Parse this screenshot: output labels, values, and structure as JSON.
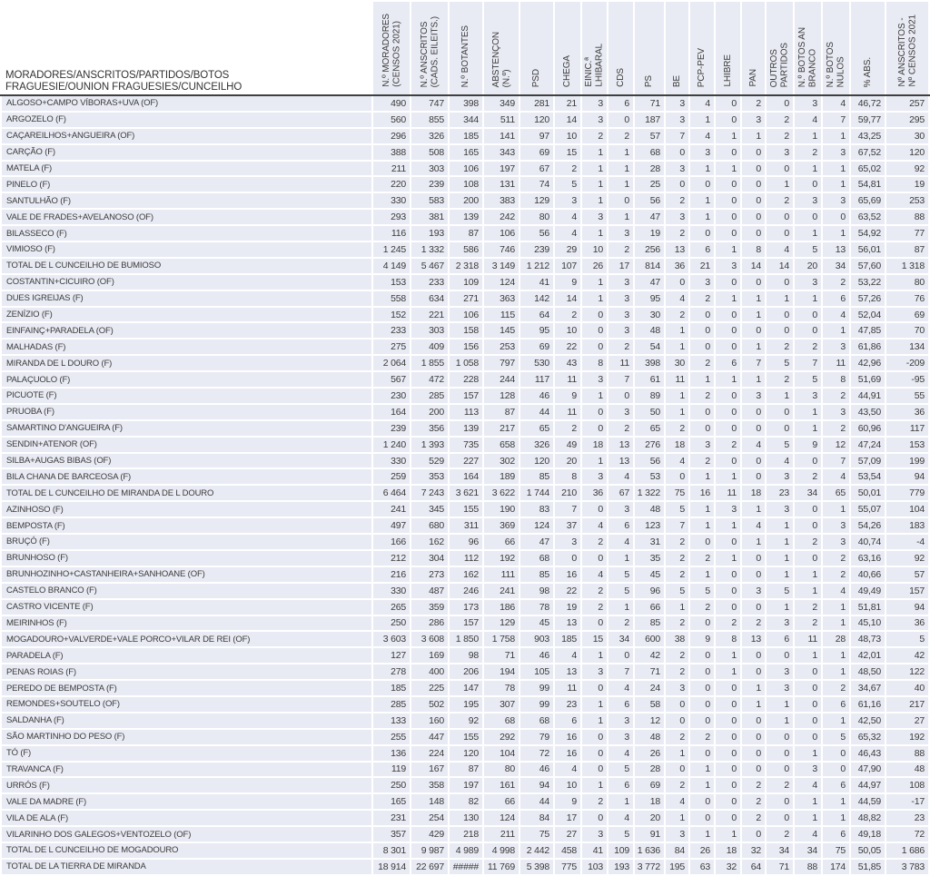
{
  "colors": {
    "row_fill": "#e9ebf4",
    "gridline": "#ffffff",
    "text": "#3a3a3a",
    "header_rule": "#404040",
    "page_bg": "#ffffff"
  },
  "table": {
    "row_header": "MORADORES/ANSCRITOS/PARTIDOS/BOTOS\nFRAGUESIE/OUNION FRAGUESIES/CUNCEILHO",
    "columns": [
      "N.º MORADORES\n(CENSOS 2021)",
      "N.º ANSCRITOS\n(CADS. EILEITS.)",
      "N.º BOTANTES",
      "ABSTENÇON\n(N.º)",
      "PSD",
      "CHEGA",
      "EINIC.ª\nLHIBARAL",
      "CDS",
      "PS",
      "BE",
      "PCP-PEV",
      "LHIBRE",
      "PAN",
      "OUTROS\nPARTIDOS",
      "N.º BOTOS AN\nBRANCO",
      "N.º BOTOS\nNULOS",
      "% ABS.",
      "Nº ANSCRITOS -\nNº CENSOS 2021"
    ],
    "rows": [
      {
        "label": "ALGOSO+CAMPO VÍBORAS+UVA (OF)",
        "values": [
          "490",
          "747",
          "398",
          "349",
          "281",
          "21",
          "3",
          "6",
          "71",
          "3",
          "4",
          "0",
          "2",
          "0",
          "3",
          "4",
          "46,72",
          "257"
        ]
      },
      {
        "label": "ARGOZELO (F)",
        "values": [
          "560",
          "855",
          "344",
          "511",
          "120",
          "14",
          "3",
          "0",
          "187",
          "3",
          "1",
          "0",
          "3",
          "2",
          "4",
          "7",
          "59,77",
          "295"
        ]
      },
      {
        "label": "CAÇAREILHOS+ANGUEIRA (OF)",
        "values": [
          "296",
          "326",
          "185",
          "141",
          "97",
          "10",
          "2",
          "2",
          "57",
          "7",
          "4",
          "1",
          "1",
          "2",
          "1",
          "1",
          "43,25",
          "30"
        ]
      },
      {
        "label": "CARÇÃO (F)",
        "values": [
          "388",
          "508",
          "165",
          "343",
          "69",
          "15",
          "1",
          "1",
          "68",
          "0",
          "3",
          "0",
          "0",
          "3",
          "2",
          "3",
          "67,52",
          "120"
        ]
      },
      {
        "label": "MATELA (F)",
        "values": [
          "211",
          "303",
          "106",
          "197",
          "67",
          "2",
          "1",
          "1",
          "28",
          "3",
          "1",
          "1",
          "0",
          "0",
          "1",
          "1",
          "65,02",
          "92"
        ]
      },
      {
        "label": "PINELO (F)",
        "values": [
          "220",
          "239",
          "108",
          "131",
          "74",
          "5",
          "1",
          "1",
          "25",
          "0",
          "0",
          "0",
          "0",
          "1",
          "0",
          "1",
          "54,81",
          "19"
        ]
      },
      {
        "label": "SANTULHÃO (F)",
        "values": [
          "330",
          "583",
          "200",
          "383",
          "129",
          "3",
          "1",
          "0",
          "56",
          "2",
          "1",
          "0",
          "0",
          "2",
          "3",
          "3",
          "65,69",
          "253"
        ]
      },
      {
        "label": "VALE DE FRADES+AVELANOSO (OF)",
        "values": [
          "293",
          "381",
          "139",
          "242",
          "80",
          "4",
          "3",
          "1",
          "47",
          "3",
          "1",
          "0",
          "0",
          "0",
          "0",
          "0",
          "63,52",
          "88"
        ]
      },
      {
        "label": "BILASSECO (F)",
        "values": [
          "116",
          "193",
          "87",
          "106",
          "56",
          "4",
          "1",
          "3",
          "19",
          "2",
          "0",
          "0",
          "0",
          "0",
          "1",
          "1",
          "54,92",
          "77"
        ]
      },
      {
        "label": "VIMIOSO (F)",
        "values": [
          "1 245",
          "1 332",
          "586",
          "746",
          "239",
          "29",
          "10",
          "2",
          "256",
          "13",
          "6",
          "1",
          "8",
          "4",
          "5",
          "13",
          "56,01",
          "87"
        ]
      },
      {
        "label": "TOTAL DE L CUNCEILHO DE BUMIOSO",
        "values": [
          "4 149",
          "5 467",
          "2 318",
          "3 149",
          "1 212",
          "107",
          "26",
          "17",
          "814",
          "36",
          "21",
          "3",
          "14",
          "14",
          "20",
          "34",
          "57,60",
          "1 318"
        ]
      },
      {
        "label": "COSTANTIN+CICUIRO (OF)",
        "values": [
          "153",
          "233",
          "109",
          "124",
          "41",
          "9",
          "1",
          "3",
          "47",
          "0",
          "3",
          "0",
          "0",
          "0",
          "3",
          "2",
          "53,22",
          "80"
        ]
      },
      {
        "label": "DUES IGREIJAS (F)",
        "values": [
          "558",
          "634",
          "271",
          "363",
          "142",
          "14",
          "1",
          "3",
          "95",
          "4",
          "2",
          "1",
          "1",
          "1",
          "1",
          "6",
          "57,26",
          "76"
        ]
      },
      {
        "label": "ZENÍZIO (F)",
        "values": [
          "152",
          "221",
          "106",
          "115",
          "64",
          "2",
          "0",
          "3",
          "30",
          "2",
          "0",
          "0",
          "1",
          "0",
          "0",
          "4",
          "52,04",
          "69"
        ]
      },
      {
        "label": "EINFAINÇ+PARADELA (OF)",
        "values": [
          "233",
          "303",
          "158",
          "145",
          "95",
          "10",
          "0",
          "3",
          "48",
          "1",
          "0",
          "0",
          "0",
          "0",
          "0",
          "1",
          "47,85",
          "70"
        ]
      },
      {
        "label": "MALHADAS (F)",
        "values": [
          "275",
          "409",
          "156",
          "253",
          "69",
          "22",
          "0",
          "2",
          "54",
          "1",
          "0",
          "0",
          "1",
          "2",
          "2",
          "3",
          "61,86",
          "134"
        ]
      },
      {
        "label": "MIRANDA DE L DOURO (F)",
        "values": [
          "2 064",
          "1 855",
          "1 058",
          "797",
          "530",
          "43",
          "8",
          "11",
          "398",
          "30",
          "2",
          "6",
          "7",
          "5",
          "7",
          "11",
          "42,96",
          "-209"
        ]
      },
      {
        "label": "PALAÇUOLO (F)",
        "values": [
          "567",
          "472",
          "228",
          "244",
          "117",
          "11",
          "3",
          "7",
          "61",
          "11",
          "1",
          "1",
          "1",
          "2",
          "5",
          "8",
          "51,69",
          "-95"
        ]
      },
      {
        "label": "PICUOTE (F)",
        "values": [
          "230",
          "285",
          "157",
          "128",
          "46",
          "9",
          "1",
          "0",
          "89",
          "1",
          "2",
          "0",
          "3",
          "1",
          "3",
          "2",
          "44,91",
          "55"
        ]
      },
      {
        "label": "PRUOBA (F)",
        "values": [
          "164",
          "200",
          "113",
          "87",
          "44",
          "11",
          "0",
          "3",
          "50",
          "1",
          "0",
          "0",
          "0",
          "0",
          "1",
          "3",
          "43,50",
          "36"
        ]
      },
      {
        "label": "SAMARTINO D'ANGUEIRA (F)",
        "values": [
          "239",
          "356",
          "139",
          "217",
          "65",
          "2",
          "0",
          "2",
          "65",
          "2",
          "0",
          "0",
          "0",
          "0",
          "1",
          "2",
          "60,96",
          "117"
        ]
      },
      {
        "label": "SENDIN+ATENOR (OF)",
        "values": [
          "1 240",
          "1 393",
          "735",
          "658",
          "326",
          "49",
          "18",
          "13",
          "276",
          "18",
          "3",
          "2",
          "4",
          "5",
          "9",
          "12",
          "47,24",
          "153"
        ]
      },
      {
        "label": "SILBA+AUGAS BIBAS (OF)",
        "values": [
          "330",
          "529",
          "227",
          "302",
          "120",
          "20",
          "1",
          "13",
          "56",
          "4",
          "2",
          "0",
          "0",
          "4",
          "0",
          "7",
          "57,09",
          "199"
        ]
      },
      {
        "label": "BILA CHANA DE BARCEOSA (F)",
        "values": [
          "259",
          "353",
          "164",
          "189",
          "85",
          "8",
          "3",
          "4",
          "53",
          "0",
          "1",
          "1",
          "0",
          "3",
          "2",
          "4",
          "53,54",
          "94"
        ]
      },
      {
        "label": "TOTAL DE L CUNCEILHO DE MIRANDA DE L DOURO",
        "values": [
          "6 464",
          "7 243",
          "3 621",
          "3 622",
          "1 744",
          "210",
          "36",
          "67",
          "1 322",
          "75",
          "16",
          "11",
          "18",
          "23",
          "34",
          "65",
          "50,01",
          "779"
        ]
      },
      {
        "label": "AZINHOSO (F)",
        "values": [
          "241",
          "345",
          "155",
          "190",
          "83",
          "7",
          "0",
          "3",
          "48",
          "5",
          "1",
          "3",
          "1",
          "3",
          "0",
          "1",
          "55,07",
          "104"
        ]
      },
      {
        "label": "BEMPOSTA (F)",
        "values": [
          "497",
          "680",
          "311",
          "369",
          "124",
          "37",
          "4",
          "6",
          "123",
          "7",
          "1",
          "1",
          "4",
          "1",
          "0",
          "3",
          "54,26",
          "183"
        ]
      },
      {
        "label": "BRUÇÓ (F)",
        "values": [
          "166",
          "162",
          "96",
          "66",
          "47",
          "3",
          "2",
          "4",
          "31",
          "2",
          "0",
          "0",
          "1",
          "1",
          "2",
          "3",
          "40,74",
          "-4"
        ]
      },
      {
        "label": "BRUNHOSO (F)",
        "values": [
          "212",
          "304",
          "112",
          "192",
          "68",
          "0",
          "0",
          "1",
          "35",
          "2",
          "2",
          "1",
          "0",
          "1",
          "0",
          "2",
          "63,16",
          "92"
        ]
      },
      {
        "label": "BRUNHOZINHO+CASTANHEIRA+SANHOANE (OF)",
        "values": [
          "216",
          "273",
          "162",
          "111",
          "85",
          "16",
          "4",
          "5",
          "45",
          "2",
          "1",
          "0",
          "0",
          "1",
          "1",
          "2",
          "40,66",
          "57"
        ]
      },
      {
        "label": "CASTELO BRANCO (F)",
        "values": [
          "330",
          "487",
          "246",
          "241",
          "98",
          "22",
          "2",
          "5",
          "96",
          "5",
          "5",
          "0",
          "3",
          "5",
          "1",
          "4",
          "49,49",
          "157"
        ]
      },
      {
        "label": "CASTRO VICENTE (F)",
        "values": [
          "265",
          "359",
          "173",
          "186",
          "78",
          "19",
          "2",
          "1",
          "66",
          "1",
          "2",
          "0",
          "0",
          "1",
          "2",
          "1",
          "51,81",
          "94"
        ]
      },
      {
        "label": "MEIRINHOS (F)",
        "values": [
          "250",
          "286",
          "157",
          "129",
          "45",
          "13",
          "0",
          "2",
          "85",
          "2",
          "0",
          "2",
          "2",
          "3",
          "2",
          "1",
          "45,10",
          "36"
        ]
      },
      {
        "label": "MOGADOURO+VALVERDE+VALE PORCO+VILAR DE REI (OF)",
        "values": [
          "3 603",
          "3 608",
          "1 850",
          "1 758",
          "903",
          "185",
          "15",
          "34",
          "600",
          "38",
          "9",
          "8",
          "13",
          "6",
          "11",
          "28",
          "48,73",
          "5"
        ]
      },
      {
        "label": "PARADELA (F)",
        "values": [
          "127",
          "169",
          "98",
          "71",
          "46",
          "4",
          "1",
          "0",
          "42",
          "2",
          "0",
          "1",
          "0",
          "0",
          "1",
          "1",
          "42,01",
          "42"
        ]
      },
      {
        "label": "PENAS ROIAS (F)",
        "values": [
          "278",
          "400",
          "206",
          "194",
          "105",
          "13",
          "3",
          "7",
          "71",
          "2",
          "0",
          "1",
          "0",
          "3",
          "0",
          "1",
          "48,50",
          "122"
        ]
      },
      {
        "label": "PEREDO DE BEMPOSTA (F)",
        "values": [
          "185",
          "225",
          "147",
          "78",
          "99",
          "11",
          "0",
          "4",
          "24",
          "3",
          "0",
          "0",
          "1",
          "3",
          "0",
          "2",
          "34,67",
          "40"
        ]
      },
      {
        "label": "REMONDES+SOUTELO (OF)",
        "values": [
          "285",
          "502",
          "195",
          "307",
          "99",
          "23",
          "1",
          "6",
          "58",
          "0",
          "0",
          "0",
          "1",
          "1",
          "0",
          "6",
          "61,16",
          "217"
        ]
      },
      {
        "label": "SALDANHA (F)",
        "values": [
          "133",
          "160",
          "92",
          "68",
          "68",
          "6",
          "1",
          "3",
          "12",
          "0",
          "0",
          "0",
          "0",
          "1",
          "0",
          "1",
          "42,50",
          "27"
        ]
      },
      {
        "label": "SÃO MARTINHO DO PESO (F)",
        "values": [
          "255",
          "447",
          "155",
          "292",
          "79",
          "16",
          "0",
          "3",
          "48",
          "2",
          "2",
          "0",
          "0",
          "0",
          "0",
          "5",
          "65,32",
          "192"
        ]
      },
      {
        "label": "TÓ (F)",
        "values": [
          "136",
          "224",
          "120",
          "104",
          "72",
          "16",
          "0",
          "4",
          "26",
          "1",
          "0",
          "0",
          "0",
          "0",
          "1",
          "0",
          "46,43",
          "88"
        ]
      },
      {
        "label": "TRAVANCA (F)",
        "values": [
          "119",
          "167",
          "87",
          "80",
          "46",
          "4",
          "0",
          "5",
          "28",
          "0",
          "1",
          "0",
          "0",
          "0",
          "3",
          "0",
          "47,90",
          "48"
        ]
      },
      {
        "label": "URRÓS (F)",
        "values": [
          "250",
          "358",
          "197",
          "161",
          "94",
          "10",
          "1",
          "6",
          "69",
          "2",
          "1",
          "0",
          "2",
          "2",
          "4",
          "6",
          "44,97",
          "108"
        ]
      },
      {
        "label": "VALE DA MADRE (F)",
        "values": [
          "165",
          "148",
          "82",
          "66",
          "44",
          "9",
          "2",
          "1",
          "18",
          "4",
          "0",
          "0",
          "2",
          "0",
          "1",
          "1",
          "44,59",
          "-17"
        ]
      },
      {
        "label": "VILA DE ALA (F)",
        "values": [
          "231",
          "254",
          "130",
          "124",
          "84",
          "17",
          "0",
          "4",
          "20",
          "1",
          "0",
          "0",
          "2",
          "0",
          "1",
          "1",
          "48,82",
          "23"
        ]
      },
      {
        "label": "VILARINHO DOS GALEGOS+VENTOZELO (OF)",
        "values": [
          "357",
          "429",
          "218",
          "211",
          "75",
          "27",
          "3",
          "5",
          "91",
          "3",
          "1",
          "1",
          "0",
          "2",
          "4",
          "6",
          "49,18",
          "72"
        ]
      },
      {
        "label": "TOTAL DE L CUNCEILHO DE MOGADOURO",
        "values": [
          "8 301",
          "9 987",
          "4 989",
          "4 998",
          "2 442",
          "458",
          "41",
          "109",
          "1 636",
          "84",
          "26",
          "18",
          "32",
          "34",
          "34",
          "75",
          "50,05",
          "1 686"
        ]
      },
      {
        "label": "TOTAL DE LA TIERRA DE MIRANDA",
        "values": [
          "18 914",
          "22 697",
          "#####",
          "11 769",
          "5 398",
          "775",
          "103",
          "193",
          "3 772",
          "195",
          "63",
          "32",
          "64",
          "71",
          "88",
          "174",
          "51,85",
          "3 783"
        ]
      }
    ]
  }
}
